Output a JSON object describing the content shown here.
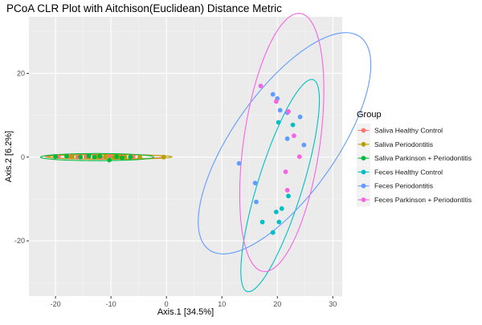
{
  "chart_data": {
    "type": "scatter",
    "title": "PCoA CLR Plot with Aitchison(Euclidean) Distance Metric",
    "xlabel": "Axis.1   [34.5%]",
    "ylabel": "Axis.2   [6.2%]",
    "xlim": [
      -24.8,
      31.7
    ],
    "ylim": [
      -33.2,
      33.5
    ],
    "x_ticks": [
      -20,
      -10,
      0,
      10,
      20,
      30
    ],
    "y_ticks": [
      -20,
      0,
      20
    ],
    "grid": true,
    "legend_position": "right",
    "legend_title": "Group",
    "series": [
      {
        "name": "Saliva Healthy Control",
        "color": "#F8766D",
        "points": [
          [
            -19.5,
            0.1
          ],
          [
            -17.5,
            0.2
          ],
          [
            -16.0,
            0.0
          ],
          [
            -14.5,
            0.1
          ],
          [
            -13.0,
            0.2
          ],
          [
            -11.8,
            -0.1
          ],
          [
            -10.2,
            0.2
          ],
          [
            -8.0,
            0.1
          ],
          [
            -6.0,
            0.1
          ]
        ],
        "ellipse": {
          "cx": -11,
          "cy": 0.1,
          "rx": 10.8,
          "ry": 0.55,
          "angle": 0
        }
      },
      {
        "name": "Saliva Periodontitis",
        "color": "#B79F00",
        "points": [
          [
            -17.0,
            0.1
          ],
          [
            -14.0,
            0.0
          ],
          [
            -12.5,
            0.1
          ],
          [
            -11.0,
            0.1
          ],
          [
            -9.5,
            0.0
          ],
          [
            -8.5,
            0.1
          ],
          [
            -7.5,
            0.0
          ],
          [
            -4.8,
            0.0
          ],
          [
            -0.5,
            0.0
          ]
        ],
        "ellipse": {
          "cx": -10.2,
          "cy": 0.05,
          "rx": 11.2,
          "ry": 0.55,
          "angle": 0
        }
      },
      {
        "name": "Saliva Parkinson + Periodontitis",
        "color": "#00BA38",
        "points": [
          [
            -20.0,
            0.1
          ],
          [
            -18.0,
            0.2
          ],
          [
            -15.5,
            0.0
          ],
          [
            -14.0,
            0.3
          ],
          [
            -13.0,
            0.0
          ],
          [
            -12.0,
            0.2
          ],
          [
            -10.3,
            -0.7
          ],
          [
            -9.0,
            0.1
          ],
          [
            -8.0,
            -0.2
          ],
          [
            -6.5,
            0.0
          ]
        ],
        "ellipse": {
          "cx": -12.5,
          "cy": 0.0,
          "rx": 10.2,
          "ry": 0.85,
          "angle": 0
        }
      },
      {
        "name": "Feces Healthy Control",
        "color": "#00BFC4",
        "points": [
          [
            20.2,
            8.3
          ],
          [
            22.8,
            7.7
          ],
          [
            22.0,
            -9.3
          ],
          [
            20.8,
            -12.3
          ],
          [
            19.8,
            -13.1
          ],
          [
            17.3,
            -15.5
          ],
          [
            20.3,
            -15.5
          ],
          [
            19.2,
            -18.0
          ]
        ],
        "ellipse": {
          "cx": 20.5,
          "cy": -6.8,
          "rx": 26.0,
          "ry": 4.1,
          "angle": 77
        }
      },
      {
        "name": "Feces Periodontitis",
        "color": "#619CFF",
        "points": [
          [
            19.2,
            15.0
          ],
          [
            20.0,
            14.0
          ],
          [
            20.5,
            11.2
          ],
          [
            21.8,
            10.6
          ],
          [
            24.1,
            9.6
          ],
          [
            21.8,
            4.4
          ],
          [
            24.8,
            2.9
          ],
          [
            13.1,
            -1.5
          ],
          [
            16.0,
            -6.2
          ],
          [
            16.2,
            -10.7
          ]
        ],
        "ellipse": {
          "cx": 21.3,
          "cy": 3.3,
          "rx": 29.0,
          "ry": 10.0,
          "angle": 64
        }
      },
      {
        "name": "Feces Parkinson + Periodontitis",
        "color": "#F564E3",
        "points": [
          [
            17.0,
            17.0
          ],
          [
            19.8,
            13.3
          ],
          [
            22.0,
            10.9
          ],
          [
            23.0,
            5.1
          ],
          [
            24.0,
            0.1
          ],
          [
            21.5,
            -3.5
          ],
          [
            21.8,
            -7.9
          ]
        ],
        "ellipse": {
          "cx": 20.8,
          "cy": 3.5,
          "rx": 31.0,
          "ry": 6.9,
          "angle": 84
        }
      }
    ]
  }
}
